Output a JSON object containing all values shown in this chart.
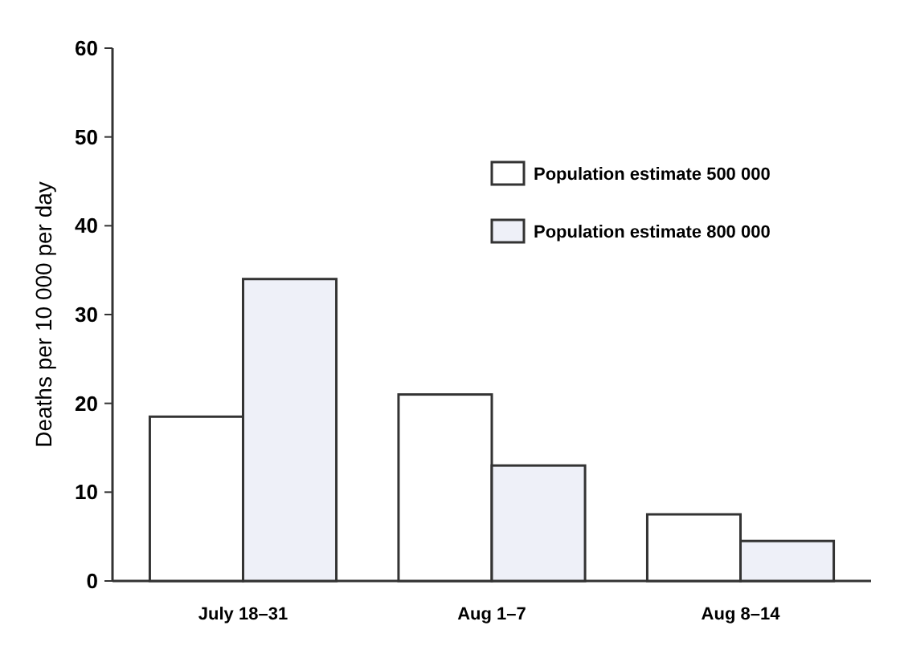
{
  "chart_data": {
    "type": "bar",
    "ylabel": "Deaths per 10 000 per day",
    "categories": [
      "July 18–31",
      "Aug 1–7",
      "Aug 8–14"
    ],
    "series": [
      {
        "name": "Population estimate 500 000",
        "color": "#ffffff",
        "values": [
          18.5,
          21,
          7.5
        ]
      },
      {
        "name": "Population estimate 800 000",
        "color": "#eef0f8",
        "values": [
          34,
          13,
          4.5
        ]
      }
    ],
    "ylim": [
      0,
      60
    ],
    "yticks": [
      0,
      10,
      20,
      30,
      40,
      50,
      60
    ],
    "grid": false,
    "legend": "top right"
  }
}
